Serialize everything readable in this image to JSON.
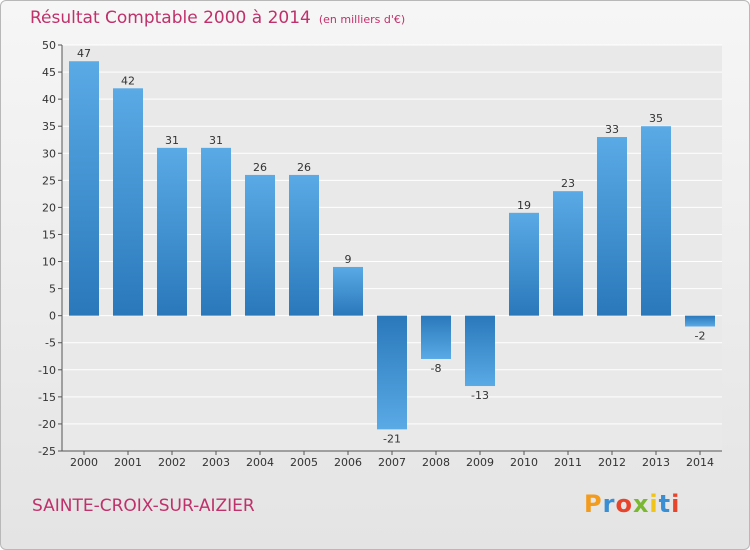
{
  "title": "Résultat Comptable 2000 à 2014",
  "unit_note": "(en milliers d'€)",
  "place": "SAINTE-CROIX-SUR-AIZIER",
  "logo": "Proxiti",
  "colors": {
    "title": "#c0306a",
    "bar_light": "#5aaae6",
    "bar_dark": "#2a78ba",
    "grid": "#ffffff",
    "background": "#e9e9e9"
  },
  "chart_data": {
    "type": "bar",
    "title": "Résultat Comptable 2000 à 2014",
    "subtitle": "(en milliers d'€)",
    "categories": [
      "2000",
      "2001",
      "2002",
      "2003",
      "2004",
      "2005",
      "2006",
      "2007",
      "2008",
      "2009",
      "2010",
      "2011",
      "2012",
      "2013",
      "2014"
    ],
    "values": [
      47,
      42,
      31,
      31,
      26,
      26,
      9,
      -21,
      -8,
      -13,
      19,
      23,
      33,
      35,
      -2
    ],
    "ylim": [
      -25,
      50
    ],
    "yticks": [
      50,
      45,
      40,
      35,
      30,
      25,
      20,
      15,
      10,
      5,
      0,
      -5,
      -10,
      -15,
      -20,
      -25
    ],
    "grid": true,
    "xlabel": "",
    "ylabel": ""
  }
}
